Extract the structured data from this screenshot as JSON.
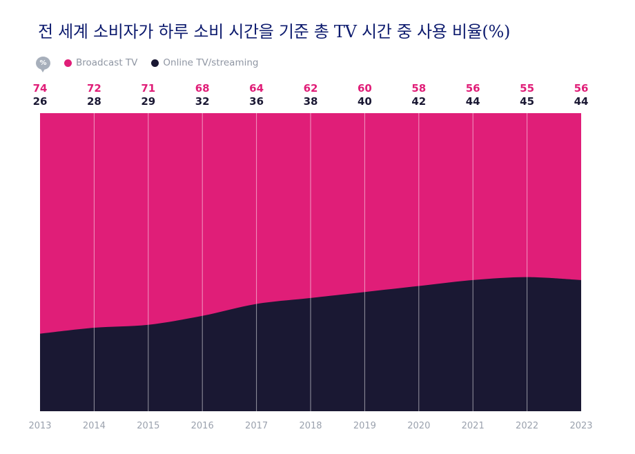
{
  "chart_data": {
    "type": "area",
    "title": "전 세계 소비자가 하루 소비 시간을 기준 총 TV 시간 중 사용 비율(%)",
    "unit_badge": "%",
    "categories": [
      "2013",
      "2014",
      "2015",
      "2016",
      "2017",
      "2018",
      "2019",
      "2020",
      "2021",
      "2022",
      "2023"
    ],
    "series": [
      {
        "name": "Broadcast TV",
        "color": "#e01e78",
        "values": [
          74,
          72,
          71,
          68,
          64,
          62,
          60,
          58,
          56,
          55,
          56
        ]
      },
      {
        "name": "Online TV/streaming",
        "color": "#1a1833",
        "values": [
          26,
          28,
          29,
          32,
          36,
          38,
          40,
          42,
          44,
          45,
          44
        ]
      }
    ],
    "stacked": true,
    "ylim": [
      0,
      100
    ],
    "grid": true,
    "legend_position": "top-left",
    "xlabel": "",
    "ylabel": ""
  }
}
